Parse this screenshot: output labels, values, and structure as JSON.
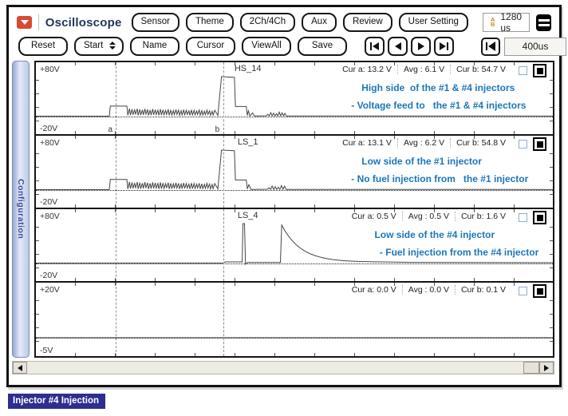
{
  "colors": {
    "annotation_blue": "#1b76ba",
    "title_navy": "#22365c",
    "app_icon_red": "#d94a33",
    "ab_gold": "#b8922a",
    "caption_bg": "#2d2e8e"
  },
  "titlebar": {
    "title": "Oscilloscope",
    "app_icon": "chevron-down-icon",
    "buttons": [
      "Sensor",
      "Theme",
      "2Ch/4Ch",
      "Aux",
      "Review",
      "User Setting"
    ],
    "ab_icon": {
      "top": "A",
      "bottom": "B"
    },
    "ab_time": "1280 us",
    "screen_icon": "screen-icon"
  },
  "toolbar": {
    "reset": "Reset",
    "start": "Start",
    "name": "Name",
    "cursor": "Cursor",
    "viewall": "ViewAll",
    "save": "Save",
    "playback_icons": [
      "skip-start-icon",
      "step-back-icon",
      "step-forward-icon",
      "skip-end-icon"
    ],
    "timebase_value": "400us",
    "timebase_icons": [
      "step-left-icon",
      "step-right-icon"
    ]
  },
  "sidebar": {
    "label": "Configuration"
  },
  "cursors": {
    "a_pct": 15.5,
    "b_pct": 36.2,
    "a_label": "a",
    "b_label": "b"
  },
  "channels": [
    {
      "vmax": "+80V",
      "vmin": "-20V",
      "name": "HS_14",
      "cur_a": "Cur a: 13.2 V",
      "avg": "Avg : 6.1 V",
      "cur_b": "Cur b: 54.7 V",
      "note1": "High side  of the #1 & #4 injectors",
      "note2": "- Voltage feed to   the #1 & #4 injectors",
      "wave": [
        [
          "M",
          0,
          0
        ],
        [
          "L",
          14.2,
          0
        ],
        [
          "L",
          14.4,
          14
        ],
        [
          "L",
          17.6,
          14
        ],
        [
          "SAW",
          35.0,
          1.2,
          10.5,
          0.5
        ],
        [
          "L",
          35.2,
          1
        ],
        [
          "L",
          35.9,
          55
        ],
        [
          "L",
          38.4,
          54
        ],
        [
          "L",
          38.6,
          13.5
        ],
        [
          "L",
          40.7,
          13.5
        ],
        [
          "L",
          40.9,
          1
        ],
        [
          "L",
          41.1,
          7.5
        ],
        [
          "L",
          41.4,
          0.3
        ],
        [
          "L",
          41.9,
          4.5
        ],
        [
          "L",
          42.3,
          0.3
        ],
        [
          "L",
          44.6,
          0.6
        ],
        [
          "SPIKES",
          48.6,
          0.3,
          6,
          0.55
        ],
        [
          "L",
          100,
          0.2
        ]
      ]
    },
    {
      "vmax": "+80V",
      "vmin": "-20V",
      "name": "LS_1",
      "cur_a": "Cur a: 13.1 V",
      "avg": "Avg : 6.2 V",
      "cur_b": "Cur b: 54.8 V",
      "note1": "Low side of the #1 injector",
      "note2": "- No fuel injection from   the #1 injector",
      "wave": [
        [
          "M",
          0,
          0
        ],
        [
          "L",
          14.2,
          0
        ],
        [
          "L",
          14.4,
          14.2
        ],
        [
          "L",
          17.6,
          14.2
        ],
        [
          "SAW",
          35.0,
          1.0,
          10.8,
          0.5
        ],
        [
          "L",
          35.2,
          1
        ],
        [
          "L",
          35.9,
          55
        ],
        [
          "L",
          38.4,
          54.2
        ],
        [
          "L",
          38.6,
          13.5
        ],
        [
          "L",
          40.7,
          13.5
        ],
        [
          "L",
          40.9,
          1
        ],
        [
          "L",
          41.2,
          7
        ],
        [
          "L",
          41.6,
          0.3
        ],
        [
          "L",
          44.8,
          0.6
        ],
        [
          "SPIKES",
          48.4,
          0.3,
          6,
          0.6
        ],
        [
          "L",
          100,
          0.2
        ]
      ]
    },
    {
      "vmax": "+80V",
      "vmin": "-20V",
      "name": "LS_4",
      "cur_a": "Cur a: 0.5 V",
      "avg": "Avg : 0.5 V",
      "cur_b": "Cur b: 1.6 V",
      "note1": "Low side of the #4 injector",
      "note2": "- Fuel injection from the #4 injector",
      "wave": [
        [
          "M",
          0,
          0
        ],
        [
          "L",
          36.3,
          0.2
        ],
        [
          "L",
          36.6,
          1.6
        ],
        [
          "L",
          39.9,
          1.6
        ],
        [
          "L",
          40.05,
          55
        ],
        [
          "L",
          40.35,
          55
        ],
        [
          "L",
          40.55,
          -1.5
        ],
        [
          "L",
          40.9,
          0.8
        ],
        [
          "L",
          47.3,
          0.9
        ],
        [
          "L",
          47.55,
          53
        ],
        [
          "DECAY",
          66,
          1.4
        ],
        [
          "L",
          72,
          1.0
        ],
        [
          "L",
          100,
          0.5
        ]
      ]
    },
    {
      "vmax": "+20V",
      "vmin": "-5V",
      "name": "",
      "cur_a": "Cur a: 0.0 V",
      "avg": "Avg : 0.0 V",
      "cur_b": "Cur b: 0.1 V",
      "note1": "",
      "note2": "",
      "wave": [
        [
          "M",
          0,
          0.2
        ],
        [
          "L",
          100,
          0.2
        ]
      ]
    }
  ],
  "caption": "Injector #4 Injection"
}
